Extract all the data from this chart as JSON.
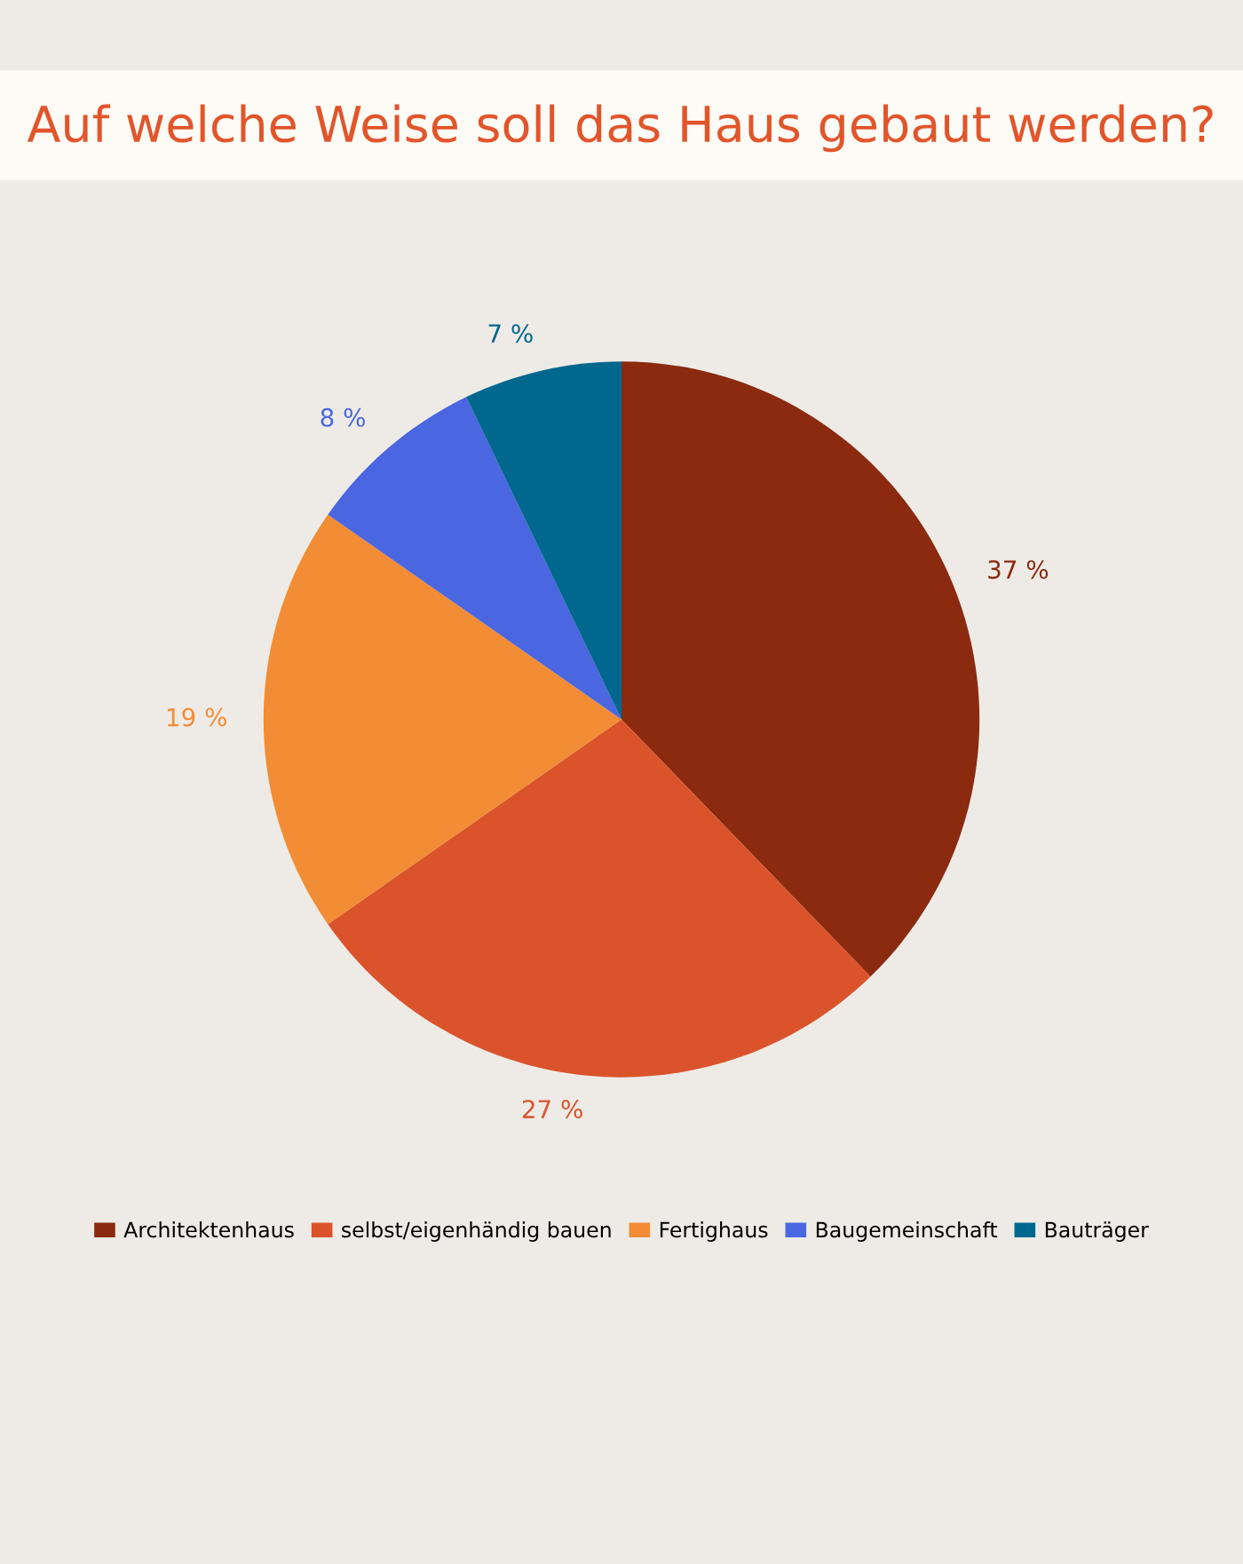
{
  "chart_data": {
    "type": "pie",
    "title": "Auf welche Weise soll das Haus gebaut werden?",
    "categories": [
      "Architektenhaus",
      "selbst/eigenhändig bauen",
      "Fertighaus",
      "Baugemeinschaft",
      "Bauträger"
    ],
    "values": [
      37,
      27,
      19,
      8,
      7
    ],
    "value_labels": [
      "37 %",
      "27 %",
      "19 %",
      "8 %",
      "7 %"
    ],
    "colors": [
      "#8b2a0f",
      "#db532b",
      "#f28c35",
      "#4a66e0",
      "#00678f"
    ],
    "legend": "bottom"
  }
}
